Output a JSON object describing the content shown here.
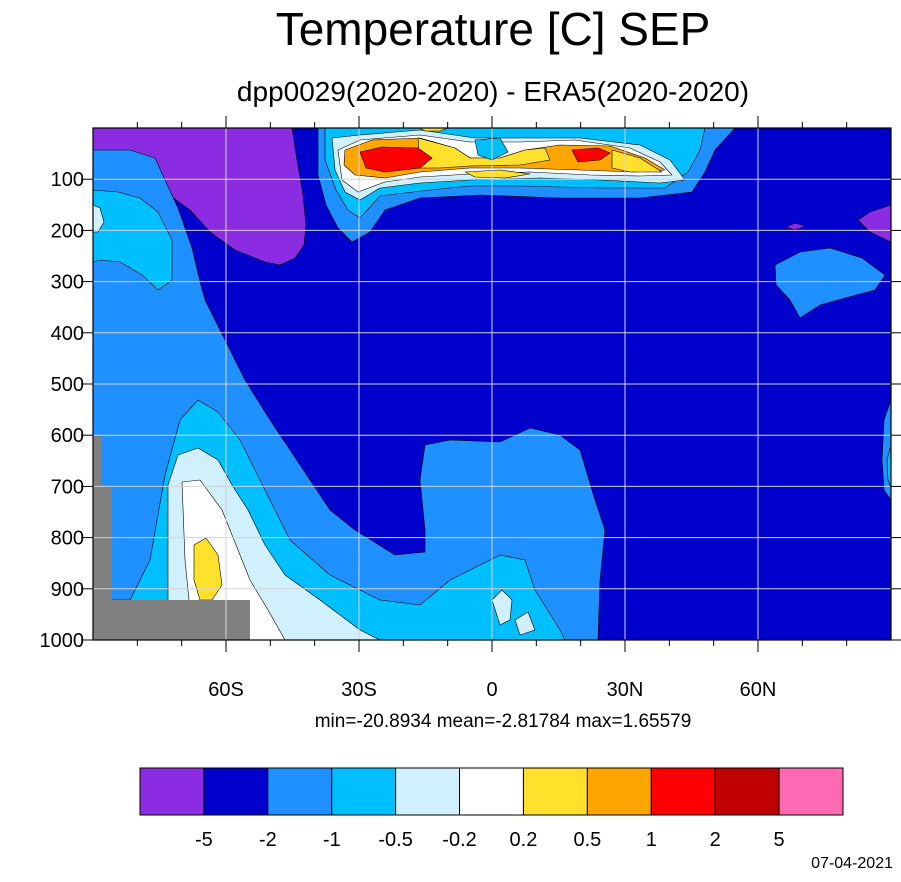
{
  "chart_data": {
    "type": "heatmap",
    "title": "Temperature [C] SEP",
    "subtitle": "dpp0029(2020-2020) - ERA5(2020-2020)",
    "x_ticks": [
      {
        "value": -60,
        "label": "60S"
      },
      {
        "value": -30,
        "label": "30S"
      },
      {
        "value": 0,
        "label": "0"
      },
      {
        "value": 30,
        "label": "30N"
      },
      {
        "value": 60,
        "label": "60N"
      }
    ],
    "y_ticks": [
      100,
      200,
      300,
      400,
      500,
      600,
      700,
      800,
      900,
      1000
    ],
    "xlim": [
      -90,
      90
    ],
    "ylim": [
      1000,
      0
    ],
    "grid": true,
    "contour_levels": [
      "-5",
      "-2",
      "-1",
      "-0.5",
      "-0.2",
      "0.2",
      "0.5",
      "1",
      "2",
      "5"
    ],
    "colors": [
      "#8b2be2",
      "#0000cd",
      "#1e90ff",
      "#00bfff",
      "#cff0fc",
      "#ffffff",
      "#ffe12b",
      "#ffa500",
      "#ff0000",
      "#c00000",
      "#ff69b4"
    ],
    "stats": "min=-20.8934   mean=-2.81784   max=1.65579",
    "date": "07-04-2021"
  }
}
